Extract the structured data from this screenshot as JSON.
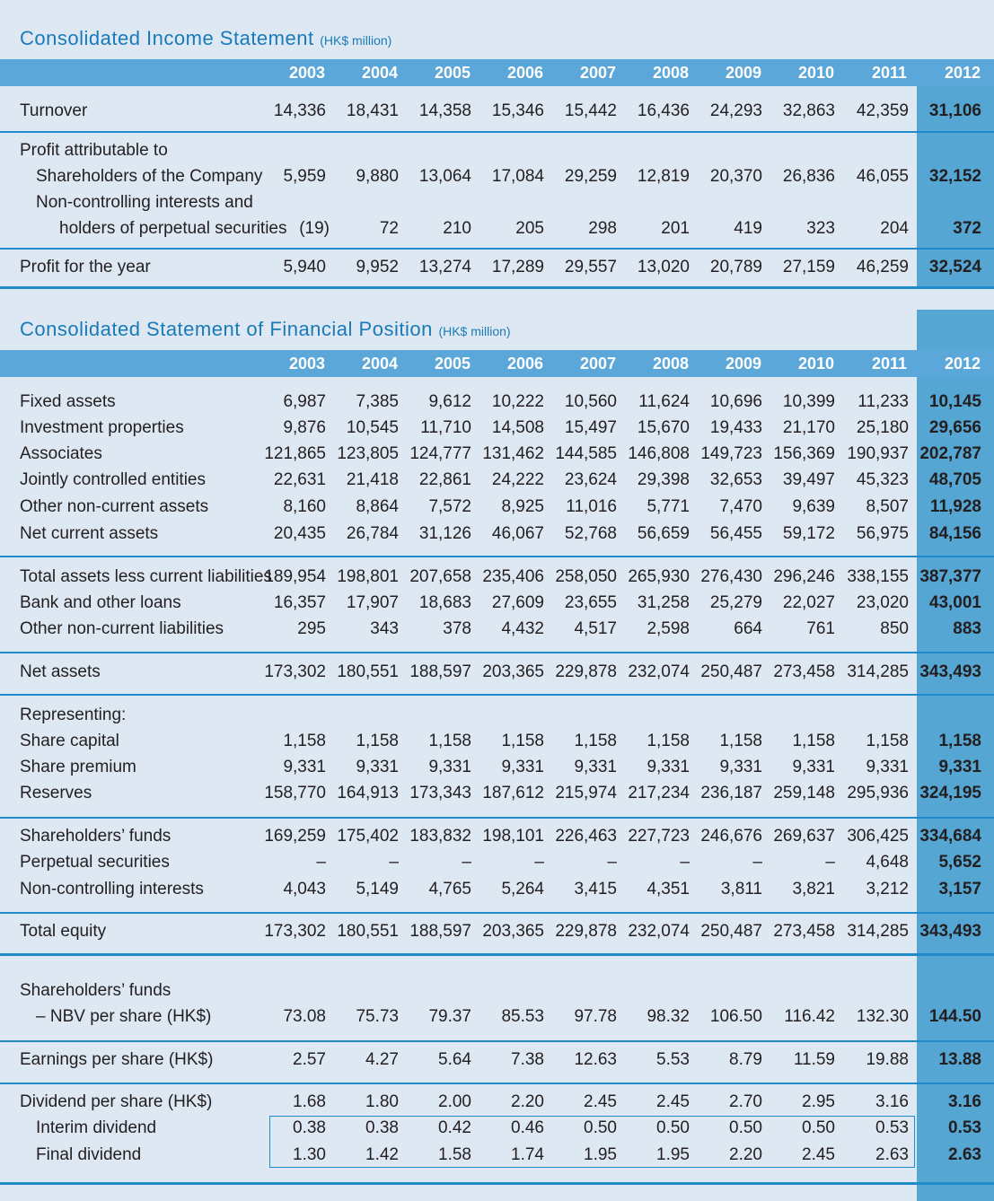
{
  "years": [
    "2003",
    "2004",
    "2005",
    "2006",
    "2007",
    "2008",
    "2009",
    "2010",
    "2011",
    "2012"
  ],
  "income": {
    "title": "Consolidated Income Statement",
    "unit": "(HK$ million)",
    "rows": [
      {
        "label": "Turnover",
        "values": [
          "14,336",
          "18,431",
          "14,358",
          "15,346",
          "15,442",
          "16,436",
          "24,293",
          "32,863",
          "42,359",
          "31,106"
        ]
      },
      {
        "label": "Profit attributable to",
        "values": []
      },
      {
        "label": "Shareholders of the Company",
        "values": [
          "5,959",
          "9,880",
          "13,064",
          "17,084",
          "29,259",
          "12,819",
          "20,370",
          "26,836",
          "46,055",
          "32,152"
        ]
      },
      {
        "label": "Non-controlling interests and",
        "values": []
      },
      {
        "label": "holders of perpetual securities",
        "values": [
          "(19)",
          "72",
          "210",
          "205",
          "298",
          "201",
          "419",
          "323",
          "204",
          "372"
        ]
      },
      {
        "label": "Profit for the year",
        "values": [
          "5,940",
          "9,952",
          "13,274",
          "17,289",
          "29,557",
          "13,020",
          "20,789",
          "27,159",
          "46,259",
          "32,524"
        ]
      }
    ]
  },
  "position": {
    "title": "Consolidated Statement of Financial Position",
    "unit": "(HK$ million)",
    "rows": [
      {
        "label": "Fixed assets",
        "values": [
          "6,987",
          "7,385",
          "9,612",
          "10,222",
          "10,560",
          "11,624",
          "10,696",
          "10,399",
          "11,233",
          "10,145"
        ]
      },
      {
        "label": "Investment properties",
        "values": [
          "9,876",
          "10,545",
          "11,710",
          "14,508",
          "15,497",
          "15,670",
          "19,433",
          "21,170",
          "25,180",
          "29,656"
        ]
      },
      {
        "label": "Associates",
        "values": [
          "121,865",
          "123,805",
          "124,777",
          "131,462",
          "144,585",
          "146,808",
          "149,723",
          "156,369",
          "190,937",
          "202,787"
        ]
      },
      {
        "label": "Jointly controlled entities",
        "values": [
          "22,631",
          "21,418",
          "22,861",
          "24,222",
          "23,624",
          "29,398",
          "32,653",
          "39,497",
          "45,323",
          "48,705"
        ]
      },
      {
        "label": "Other non-current assets",
        "values": [
          "8,160",
          "8,864",
          "7,572",
          "8,925",
          "11,016",
          "5,771",
          "7,470",
          "9,639",
          "8,507",
          "11,928"
        ]
      },
      {
        "label": "Net current assets",
        "values": [
          "20,435",
          "26,784",
          "31,126",
          "46,067",
          "52,768",
          "56,659",
          "56,455",
          "59,172",
          "56,975",
          "84,156"
        ]
      },
      {
        "label": "Total assets less current liabilities",
        "values": [
          "189,954",
          "198,801",
          "207,658",
          "235,406",
          "258,050",
          "265,930",
          "276,430",
          "296,246",
          "338,155",
          "387,377"
        ]
      },
      {
        "label": "Bank and other loans",
        "values": [
          "16,357",
          "17,907",
          "18,683",
          "27,609",
          "23,655",
          "31,258",
          "25,279",
          "22,027",
          "23,020",
          "43,001"
        ]
      },
      {
        "label": "Other non-current liabilities",
        "values": [
          "295",
          "343",
          "378",
          "4,432",
          "4,517",
          "2,598",
          "664",
          "761",
          "850",
          "883"
        ]
      },
      {
        "label": "Net assets",
        "values": [
          "173,302",
          "180,551",
          "188,597",
          "203,365",
          "229,878",
          "232,074",
          "250,487",
          "273,458",
          "314,285",
          "343,493"
        ]
      },
      {
        "label": "Representing:",
        "values": []
      },
      {
        "label": "Share capital",
        "values": [
          "1,158",
          "1,158",
          "1,158",
          "1,158",
          "1,158",
          "1,158",
          "1,158",
          "1,158",
          "1,158",
          "1,158"
        ]
      },
      {
        "label": "Share premium",
        "values": [
          "9,331",
          "9,331",
          "9,331",
          "9,331",
          "9,331",
          "9,331",
          "9,331",
          "9,331",
          "9,331",
          "9,331"
        ]
      },
      {
        "label": "Reserves",
        "values": [
          "158,770",
          "164,913",
          "173,343",
          "187,612",
          "215,974",
          "217,234",
          "236,187",
          "259,148",
          "295,936",
          "324,195"
        ]
      },
      {
        "label": "Shareholders’ funds",
        "values": [
          "169,259",
          "175,402",
          "183,832",
          "198,101",
          "226,463",
          "227,723",
          "246,676",
          "269,637",
          "306,425",
          "334,684"
        ]
      },
      {
        "label": "Perpetual securities",
        "values": [
          "–",
          "–",
          "–",
          "–",
          "–",
          "–",
          "–",
          "–",
          "4,648",
          "5,652"
        ]
      },
      {
        "label": "Non-controlling interests",
        "values": [
          "4,043",
          "5,149",
          "4,765",
          "5,264",
          "3,415",
          "4,351",
          "3,811",
          "3,821",
          "3,212",
          "3,157"
        ]
      },
      {
        "label": "Total equity",
        "values": [
          "173,302",
          "180,551",
          "188,597",
          "203,365",
          "229,878",
          "232,074",
          "250,487",
          "273,458",
          "314,285",
          "343,493"
        ]
      },
      {
        "label": "Shareholders’ funds",
        "values": []
      },
      {
        "label": "– NBV per share (HK$)",
        "values": [
          "73.08",
          "75.73",
          "79.37",
          "85.53",
          "97.78",
          "98.32",
          "106.50",
          "116.42",
          "132.30",
          "144.50"
        ]
      },
      {
        "label": "Earnings per share (HK$)",
        "values": [
          "2.57",
          "4.27",
          "5.64",
          "7.38",
          "12.63",
          "5.53",
          "8.79",
          "11.59",
          "19.88",
          "13.88"
        ]
      },
      {
        "label": "Dividend per share (HK$)",
        "values": [
          "1.68",
          "1.80",
          "2.00",
          "2.20",
          "2.45",
          "2.45",
          "2.70",
          "2.95",
          "3.16",
          "3.16"
        ]
      },
      {
        "label": "Interim dividend",
        "values": [
          "0.38",
          "0.38",
          "0.42",
          "0.46",
          "0.50",
          "0.50",
          "0.50",
          "0.50",
          "0.53",
          "0.53"
        ]
      },
      {
        "label": "Final dividend",
        "values": [
          "1.30",
          "1.42",
          "1.58",
          "1.74",
          "1.95",
          "1.95",
          "2.20",
          "2.45",
          "2.63",
          "2.63"
        ]
      }
    ]
  }
}
